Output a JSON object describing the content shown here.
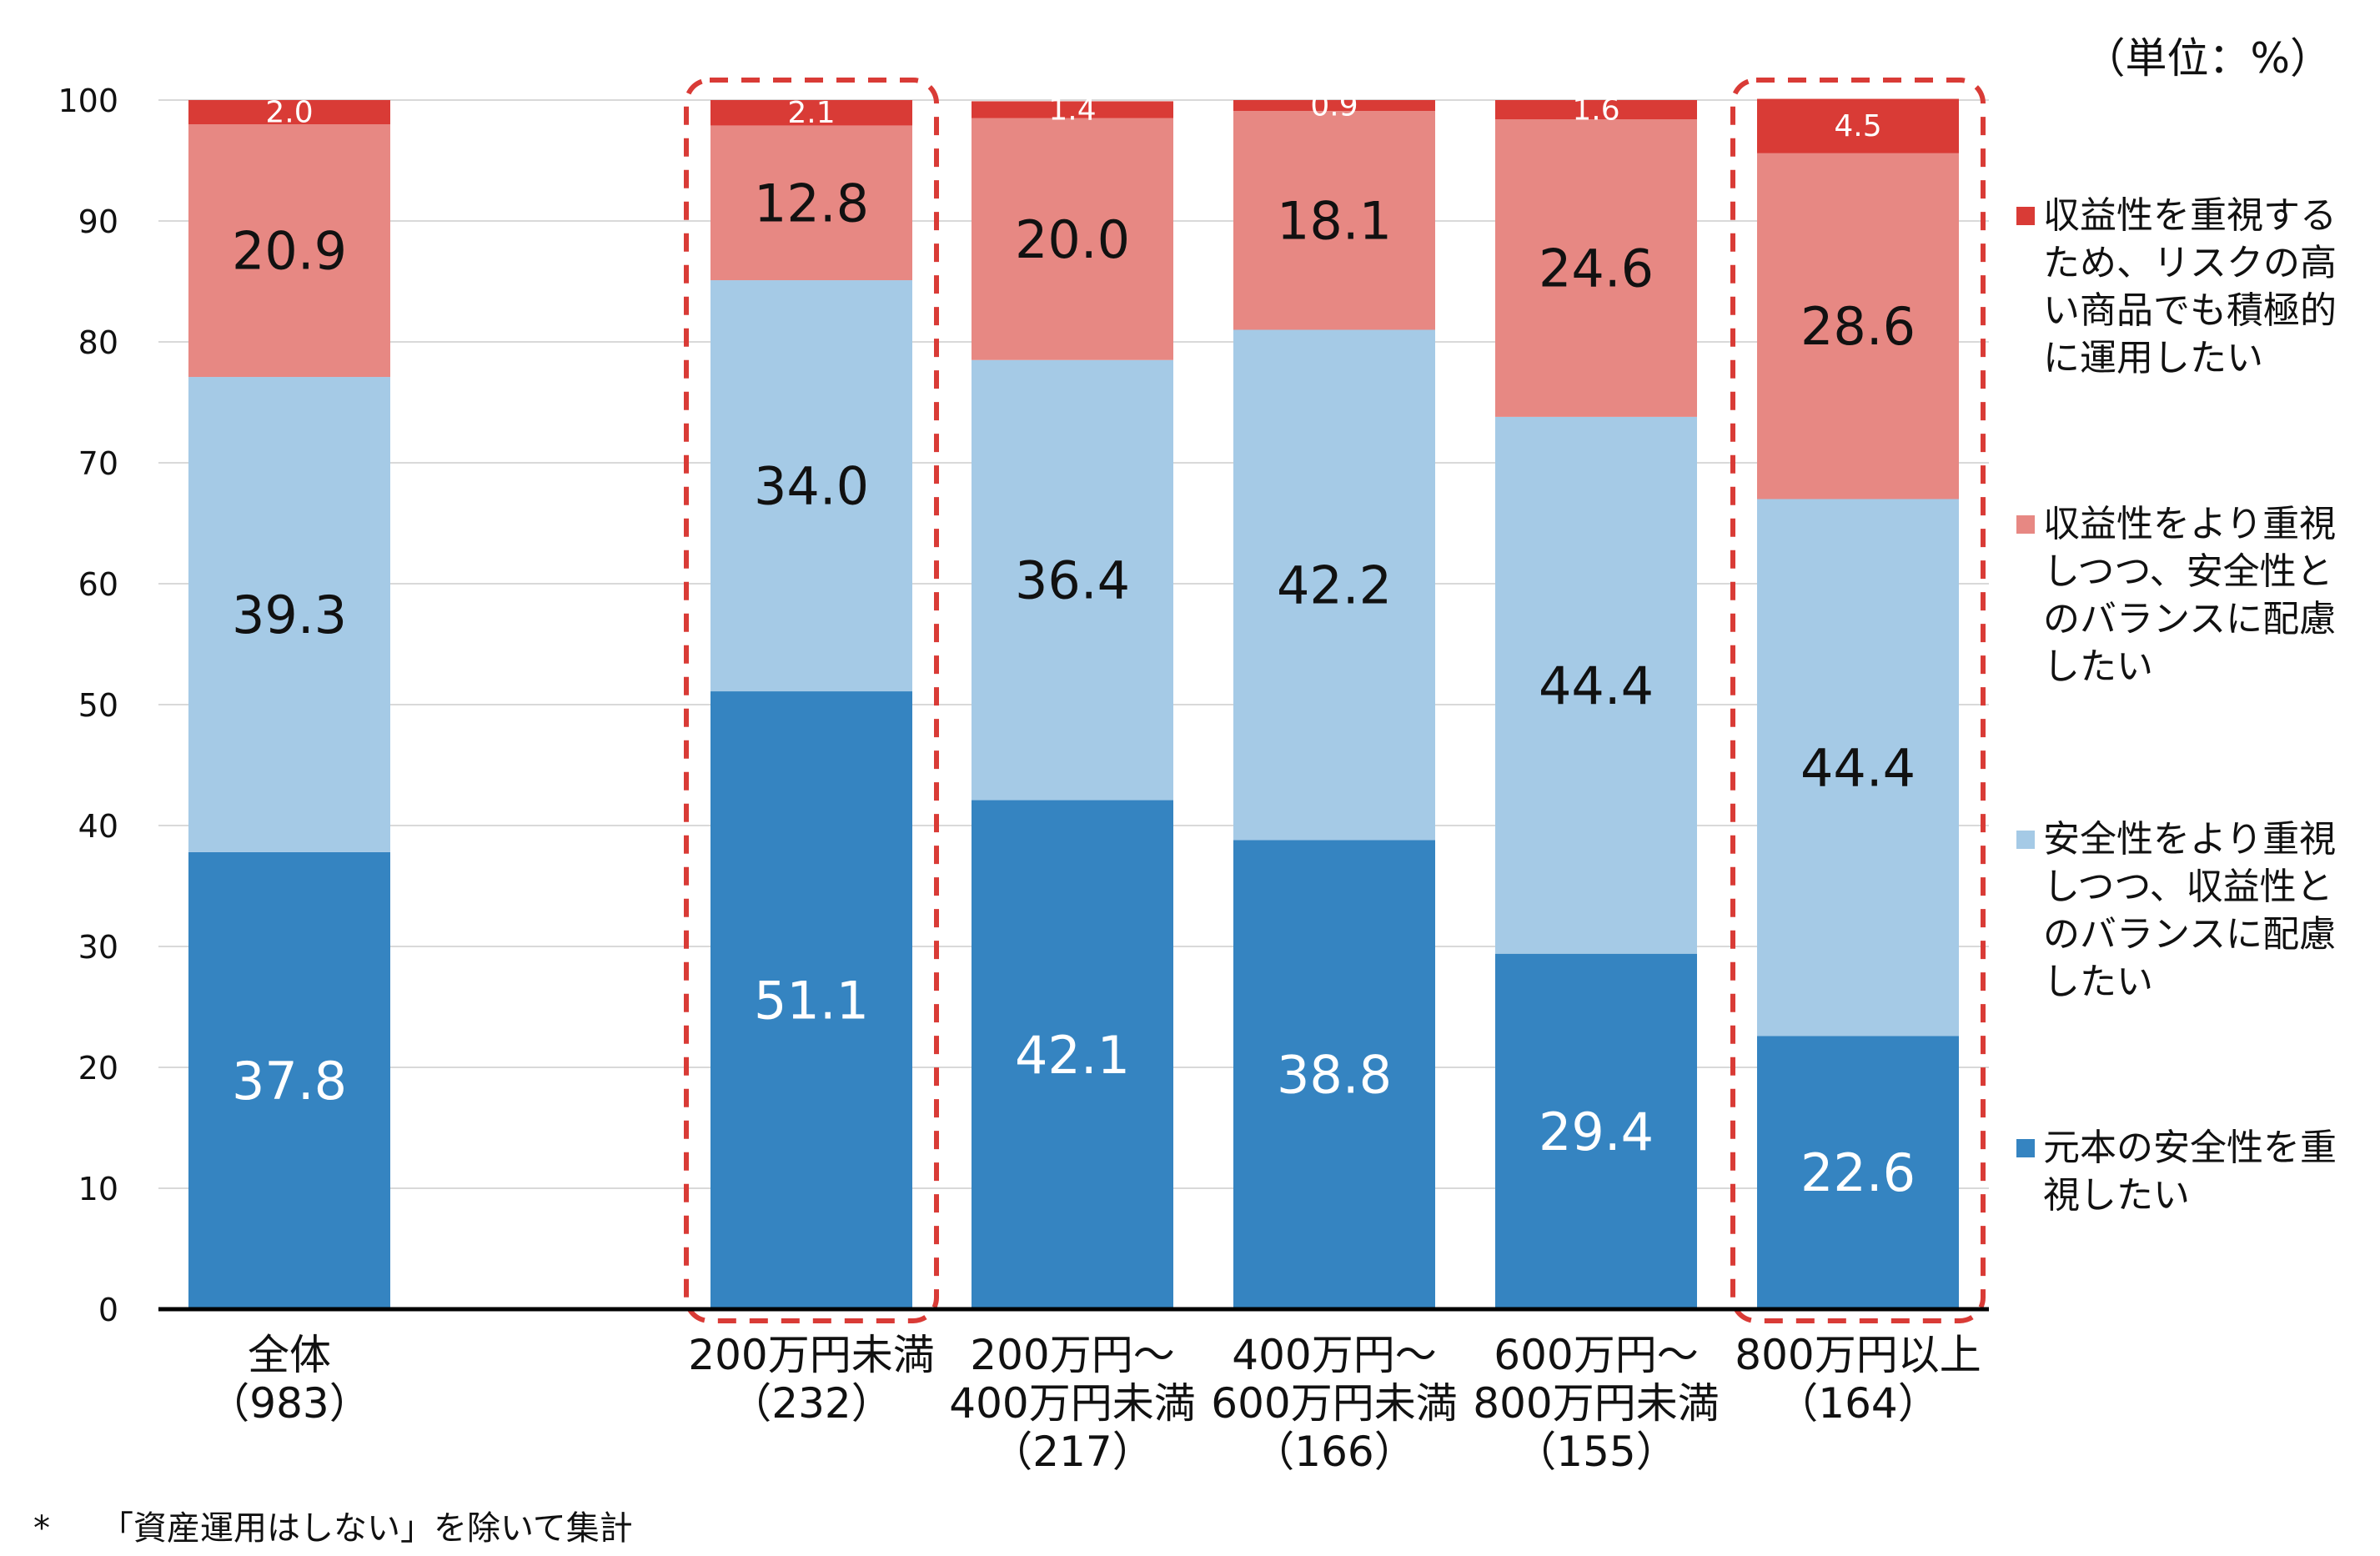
{
  "unit_label": "（単位：%）",
  "footnote": {
    "marker": "*",
    "text": "「資産運用はしない」を除いて集計"
  },
  "colors": {
    "gain_priority": "#d93b36",
    "gain_leaning": "#e78883",
    "safety_leaning": "#a5cae6",
    "principal_priority": "#3584c1",
    "dashed_highlight": "#d93b36",
    "grid": "#d9d9d9",
    "axis": "#000000"
  },
  "legend": [
    {
      "key": "gain_priority",
      "label": "収益性を重視する\nため、リスクの高\nい商品でも積極的\nに運用したい"
    },
    {
      "key": "gain_leaning",
      "label": "収益性をより重視\nしつつ、安全性と\nのバランスに配慮\nしたい"
    },
    {
      "key": "safety_leaning",
      "label": "安全性をより重視\nしつつ、収益性と\nのバランスに配慮\nしたい"
    },
    {
      "key": "principal_priority",
      "label": "元本の安全性を重\n視したい"
    }
  ],
  "chart_data": {
    "type": "bar",
    "stacked": true,
    "title": "",
    "xlabel": "",
    "ylabel": "",
    "ylim": [
      0,
      100
    ],
    "yticks": [
      0,
      10,
      20,
      30,
      40,
      50,
      60,
      70,
      80,
      90,
      100
    ],
    "grid": true,
    "legend_position": "right",
    "categories": [
      "全体\n（983）",
      "200万円未満\n（232）",
      "200万円～\n400万円未満\n（217）",
      "400万円～\n600万円未満\n（166）",
      "600万円～\n800万円未満\n（155）",
      "800万円以上\n（164）"
    ],
    "highlighted_categories": [
      1,
      5
    ],
    "series": [
      {
        "key": "principal_priority",
        "name": "元本の安全性を重視したい",
        "values": [
          37.8,
          51.1,
          42.1,
          38.8,
          29.4,
          22.6
        ],
        "labels": [
          "37.8",
          "51.1",
          "42.1",
          "38.8",
          "29.4",
          "22.6"
        ]
      },
      {
        "key": "safety_leaning",
        "name": "安全性をより重視しつつ、収益性とのバランスに配慮したい",
        "values": [
          39.3,
          34.0,
          36.4,
          42.2,
          44.4,
          44.4
        ],
        "labels": [
          "39.3",
          "34.0",
          "36.4",
          "42.2",
          "44.4",
          "44.4"
        ]
      },
      {
        "key": "gain_leaning",
        "name": "収益性をより重視しつつ、安全性とのバランスに配慮したい",
        "values": [
          20.9,
          12.8,
          20.0,
          18.1,
          24.6,
          28.6
        ],
        "labels": [
          "20.9",
          "12.8",
          "20.0",
          "18.1",
          "24.6",
          "28.6"
        ]
      },
      {
        "key": "gain_priority",
        "name": "収益性を重視するため、リスクの高い商品でも積極的に運用したい",
        "values": [
          2.0,
          2.1,
          1.4,
          0.9,
          1.6,
          4.5
        ],
        "labels": [
          "2.0",
          "2.1",
          "1.4",
          "0.9",
          "1.6",
          "4.5"
        ]
      }
    ]
  }
}
